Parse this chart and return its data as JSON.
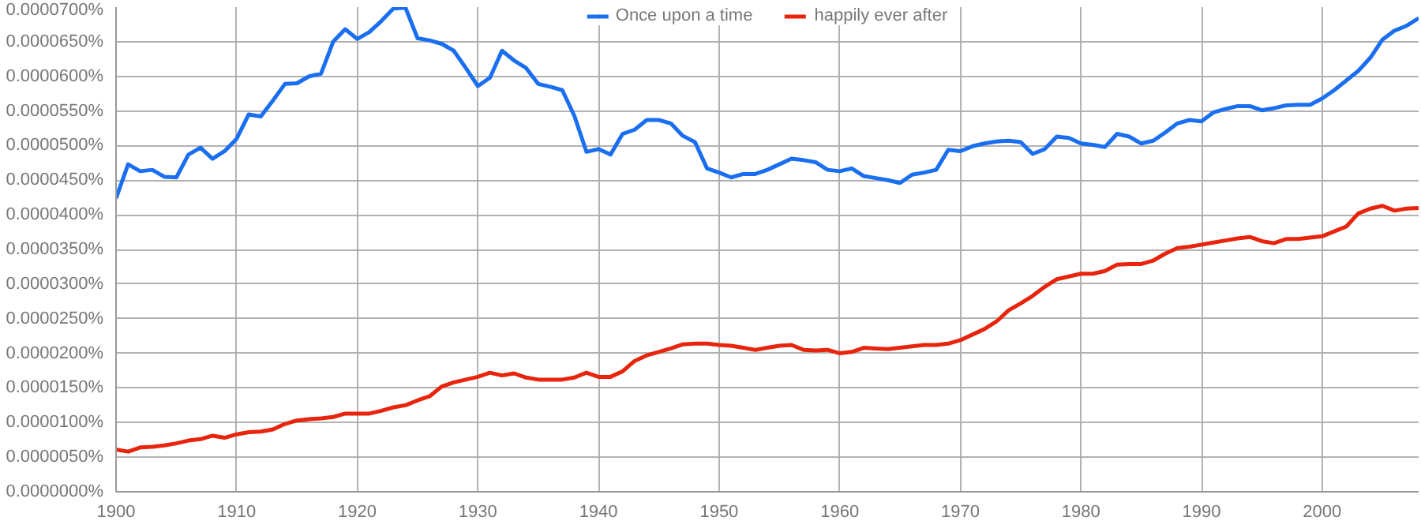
{
  "chart_data": {
    "type": "line",
    "x": [
      1900,
      1901,
      1902,
      1903,
      1904,
      1905,
      1906,
      1907,
      1908,
      1909,
      1910,
      1911,
      1912,
      1913,
      1914,
      1915,
      1916,
      1917,
      1918,
      1919,
      1920,
      1921,
      1922,
      1923,
      1924,
      1925,
      1926,
      1927,
      1928,
      1929,
      1930,
      1931,
      1932,
      1933,
      1934,
      1935,
      1936,
      1937,
      1938,
      1939,
      1940,
      1941,
      1942,
      1943,
      1944,
      1945,
      1946,
      1947,
      1948,
      1949,
      1950,
      1951,
      1952,
      1953,
      1954,
      1955,
      1956,
      1957,
      1958,
      1959,
      1960,
      1961,
      1962,
      1963,
      1964,
      1965,
      1966,
      1967,
      1968,
      1969,
      1970,
      1971,
      1972,
      1973,
      1974,
      1975,
      1976,
      1977,
      1978,
      1979,
      1980,
      1981,
      1982,
      1983,
      1984,
      1985,
      1986,
      1987,
      1988,
      1989,
      1990,
      1991,
      1992,
      1993,
      1994,
      1995,
      1996,
      1997,
      1998,
      1999,
      2000,
      2001,
      2002,
      2003,
      2004,
      2005,
      2006,
      2007,
      2008
    ],
    "series": [
      {
        "name": "Once upon a time",
        "color": "#1a6ff0",
        "values": [
          4.24e-05,
          4.73e-05,
          4.63e-05,
          4.65e-05,
          4.55e-05,
          4.54e-05,
          4.87e-05,
          4.97e-05,
          4.81e-05,
          4.92e-05,
          5.1e-05,
          5.45e-05,
          5.42e-05,
          5.65e-05,
          5.89e-05,
          5.9e-05,
          6e-05,
          6.04e-05,
          6.5e-05,
          6.68e-05,
          6.54e-05,
          6.64e-05,
          6.8e-05,
          6.98e-05,
          6.99e-05,
          6.55e-05,
          6.52e-05,
          6.47e-05,
          6.37e-05,
          6.12e-05,
          5.86e-05,
          5.98e-05,
          6.37e-05,
          6.23e-05,
          6.12e-05,
          5.89e-05,
          5.85e-05,
          5.8e-05,
          5.43e-05,
          4.91e-05,
          4.95e-05,
          4.87e-05,
          5.17e-05,
          5.23e-05,
          5.37e-05,
          5.37e-05,
          5.32e-05,
          5.14e-05,
          5.05e-05,
          4.67e-05,
          4.61e-05,
          4.54e-05,
          4.59e-05,
          4.59e-05,
          4.65e-05,
          4.73e-05,
          4.81e-05,
          4.79e-05,
          4.76e-05,
          4.65e-05,
          4.63e-05,
          4.67e-05,
          4.56e-05,
          4.53e-05,
          4.5e-05,
          4.46e-05,
          4.58e-05,
          4.61e-05,
          4.65e-05,
          4.94e-05,
          4.92e-05,
          4.99e-05,
          5.03e-05,
          5.06e-05,
          5.07e-05,
          5.05e-05,
          4.88e-05,
          4.95e-05,
          5.13e-05,
          5.11e-05,
          5.03e-05,
          5.01e-05,
          4.98e-05,
          5.17e-05,
          5.13e-05,
          5.03e-05,
          5.07e-05,
          5.19e-05,
          5.32e-05,
          5.37e-05,
          5.35e-05,
          5.48e-05,
          5.53e-05,
          5.57e-05,
          5.57e-05,
          5.51e-05,
          5.54e-05,
          5.58e-05,
          5.59e-05,
          5.59e-05,
          5.68e-05,
          5.8e-05,
          5.94e-05,
          6.08e-05,
          6.27e-05,
          6.53e-05,
          6.66e-05,
          6.73e-05,
          6.84e-05
        ]
      },
      {
        "name": "happily ever after",
        "color": "#e8250c",
        "values": [
          6.1e-06,
          5.8e-06,
          6.4e-06,
          6.5e-06,
          6.7e-06,
          7e-06,
          7.4e-06,
          7.6e-06,
          8.1e-06,
          7.8e-06,
          8.3e-06,
          8.6e-06,
          8.7e-06,
          9e-06,
          9.8e-06,
          1.03e-05,
          1.05e-05,
          1.06e-05,
          1.08e-05,
          1.13e-05,
          1.13e-05,
          1.13e-05,
          1.17e-05,
          1.22e-05,
          1.25e-05,
          1.32e-05,
          1.38e-05,
          1.52e-05,
          1.58e-05,
          1.62e-05,
          1.66e-05,
          1.72e-05,
          1.68e-05,
          1.71e-05,
          1.65e-05,
          1.62e-05,
          1.62e-05,
          1.62e-05,
          1.65e-05,
          1.72e-05,
          1.66e-05,
          1.66e-05,
          1.74e-05,
          1.89e-05,
          1.97e-05,
          2.02e-05,
          2.07e-05,
          2.13e-05,
          2.14e-05,
          2.14e-05,
          2.12e-05,
          2.11e-05,
          2.08e-05,
          2.05e-05,
          2.08e-05,
          2.11e-05,
          2.12e-05,
          2.05e-05,
          2.04e-05,
          2.05e-05,
          2e-05,
          2.02e-05,
          2.08e-05,
          2.07e-05,
          2.06e-05,
          2.08e-05,
          2.1e-05,
          2.12e-05,
          2.12e-05,
          2.14e-05,
          2.19e-05,
          2.27e-05,
          2.35e-05,
          2.46e-05,
          2.62e-05,
          2.72e-05,
          2.83e-05,
          2.96e-05,
          3.07e-05,
          3.11e-05,
          3.15e-05,
          3.15e-05,
          3.19e-05,
          3.28e-05,
          3.29e-05,
          3.29e-05,
          3.34e-05,
          3.44e-05,
          3.52e-05,
          3.54e-05,
          3.57e-05,
          3.6e-05,
          3.63e-05,
          3.66e-05,
          3.68e-05,
          3.62e-05,
          3.59e-05,
          3.65e-05,
          3.65e-05,
          3.67e-05,
          3.69e-05,
          3.76e-05,
          3.83e-05,
          4.02e-05,
          4.09e-05,
          4.13e-05,
          4.06e-05,
          4.09e-05,
          4.1e-05
        ]
      }
    ],
    "xlim": [
      1900,
      2008
    ],
    "xticks": [
      1900,
      1910,
      1920,
      1930,
      1940,
      1950,
      1960,
      1970,
      1980,
      1990,
      2000
    ],
    "ylim": [
      0,
      7e-05
    ],
    "yticks": [
      {
        "value": 0,
        "label": "0.0000000%"
      },
      {
        "value": 5e-06,
        "label": "0.0000050%"
      },
      {
        "value": 1e-05,
        "label": "0.0000100%"
      },
      {
        "value": 1.5e-05,
        "label": "0.0000150%"
      },
      {
        "value": 2e-05,
        "label": "0.0000200%"
      },
      {
        "value": 2.5e-05,
        "label": "0.0000250%"
      },
      {
        "value": 3e-05,
        "label": "0.0000300%"
      },
      {
        "value": 3.5e-05,
        "label": "0.0000350%"
      },
      {
        "value": 4e-05,
        "label": "0.0000400%"
      },
      {
        "value": 4.5e-05,
        "label": "0.0000450%"
      },
      {
        "value": 5e-05,
        "label": "0.0000500%"
      },
      {
        "value": 5.5e-05,
        "label": "0.0000550%"
      },
      {
        "value": 6e-05,
        "label": "0.0000600%"
      },
      {
        "value": 6.5e-05,
        "label": "0.0000650%"
      },
      {
        "value": 7e-05,
        "label": "0.0000700%"
      }
    ],
    "grid": true,
    "legend": "top",
    "marker": "none",
    "line_style": "solid"
  }
}
